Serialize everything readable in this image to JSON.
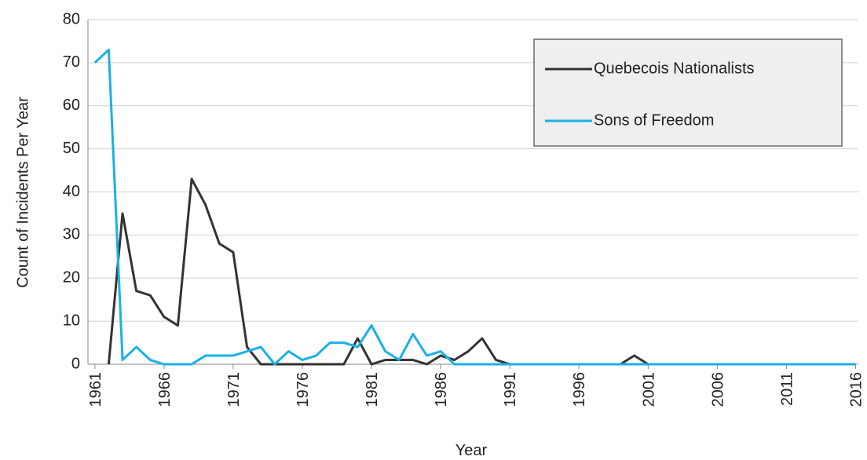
{
  "chart_data": {
    "type": "line",
    "x_label": "Year",
    "y_label": "Count of Incidents Per Year",
    "x": [
      1961,
      1962,
      1963,
      1964,
      1965,
      1966,
      1967,
      1968,
      1969,
      1970,
      1971,
      1972,
      1973,
      1974,
      1975,
      1976,
      1977,
      1978,
      1979,
      1980,
      1981,
      1982,
      1983,
      1984,
      1985,
      1986,
      1987,
      1988,
      1989,
      1990,
      1991,
      1992,
      1993,
      1994,
      1995,
      1996,
      1997,
      1998,
      1999,
      2000,
      2001,
      2002,
      2003,
      2004,
      2005,
      2006,
      2007,
      2008,
      2009,
      2010,
      2011,
      2012,
      2013,
      2014,
      2015,
      2016
    ],
    "series": [
      {
        "name": "Quebecois Nationalists",
        "color": "#333333",
        "values": [
          null,
          0,
          35,
          17,
          16,
          11,
          9,
          43,
          37,
          28,
          26,
          4,
          0,
          0,
          0,
          0,
          0,
          0,
          0,
          6,
          0,
          1,
          1,
          1,
          0,
          2,
          1,
          3,
          6,
          1,
          0,
          0,
          0,
          0,
          0,
          0,
          0,
          0,
          0,
          2,
          0,
          0,
          0,
          0,
          0,
          0,
          0,
          0,
          0,
          0,
          0,
          0,
          0,
          0,
          0,
          0
        ]
      },
      {
        "name": "Sons of Freedom",
        "color": "#1ab0e8",
        "values": [
          70,
          73,
          1,
          4,
          1,
          0,
          0,
          0,
          2,
          2,
          2,
          3,
          4,
          0,
          3,
          1,
          2,
          5,
          5,
          4,
          9,
          3,
          1,
          7,
          2,
          3,
          0,
          0,
          0,
          0,
          0,
          0,
          0,
          0,
          0,
          0,
          0,
          0,
          0,
          0,
          0,
          0,
          0,
          0,
          0,
          0,
          0,
          0,
          0,
          0,
          0,
          0,
          0,
          0,
          0,
          0
        ]
      }
    ],
    "xlim": [
      1960.5,
      2016.2
    ],
    "ylim": [
      0,
      80
    ],
    "xticks": [
      1961,
      1966,
      1971,
      1976,
      1981,
      1986,
      1991,
      1996,
      2001,
      2006,
      2011,
      2016
    ],
    "yticks": [
      0,
      10,
      20,
      30,
      40,
      50,
      60,
      70,
      80
    ],
    "grid": true,
    "legend": "upper right"
  }
}
